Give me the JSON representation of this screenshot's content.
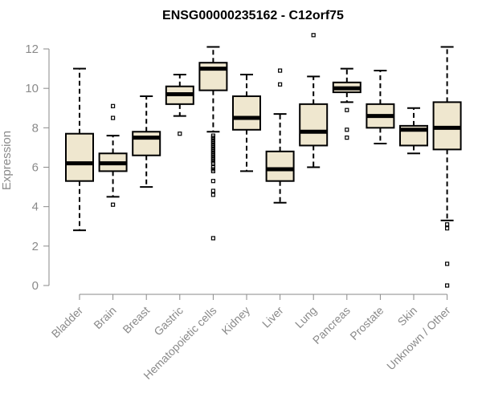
{
  "chart_data": {
    "type": "box",
    "title": "ENSG00000235162 - C12orf75",
    "xlabel": "",
    "ylabel": "Expression",
    "ylim": [
      0,
      12
    ],
    "yticks": [
      0,
      2,
      4,
      6,
      8,
      10,
      12
    ],
    "box_color": "#efe7cf",
    "categories": [
      "Bladder",
      "Brain",
      "Breast",
      "Gastric",
      "Hematopoietic cells",
      "Kidney",
      "Liver",
      "Lung",
      "Pancreas",
      "Prostate",
      "Skin",
      "Unknown / Other"
    ],
    "boxes": [
      {
        "name": "Bladder",
        "min": 2.8,
        "q1": 5.3,
        "median": 6.2,
        "q3": 7.7,
        "max": 11.0,
        "outliers": []
      },
      {
        "name": "Brain",
        "min": 4.5,
        "q1": 5.8,
        "median": 6.2,
        "q3": 6.7,
        "max": 7.6,
        "outliers": [
          4.1,
          8.5,
          9.1
        ]
      },
      {
        "name": "Breast",
        "min": 5.0,
        "q1": 6.6,
        "median": 7.5,
        "q3": 7.8,
        "max": 9.6,
        "outliers": []
      },
      {
        "name": "Gastric",
        "min": 8.6,
        "q1": 9.2,
        "median": 9.7,
        "q3": 10.1,
        "max": 10.7,
        "outliers": [
          7.7
        ]
      },
      {
        "name": "Hematopoietic cells",
        "min": 7.8,
        "q1": 9.9,
        "median": 11.0,
        "q3": 11.3,
        "max": 12.1,
        "outliers": [
          7.6,
          7.5,
          7.4,
          7.3,
          7.2,
          7.1,
          7.0,
          6.9,
          6.8,
          6.7,
          6.6,
          6.5,
          6.4,
          6.3,
          6.2,
          6.0,
          5.9,
          5.8,
          5.3,
          4.8,
          4.6,
          2.4
        ]
      },
      {
        "name": "Kidney",
        "min": 5.8,
        "q1": 7.9,
        "median": 8.5,
        "q3": 9.6,
        "max": 10.7,
        "outliers": []
      },
      {
        "name": "Liver",
        "min": 4.2,
        "q1": 5.3,
        "median": 5.9,
        "q3": 6.8,
        "max": 8.7,
        "outliers": [
          10.2,
          10.9
        ]
      },
      {
        "name": "Lung",
        "min": 6.0,
        "q1": 7.1,
        "median": 7.8,
        "q3": 9.2,
        "max": 10.6,
        "outliers": [
          12.7
        ]
      },
      {
        "name": "Pancreas",
        "min": 9.3,
        "q1": 9.8,
        "median": 10.0,
        "q3": 10.3,
        "max": 11.0,
        "outliers": [
          8.9,
          7.9,
          7.5
        ]
      },
      {
        "name": "Prostate",
        "min": 7.2,
        "q1": 8.0,
        "median": 8.6,
        "q3": 9.2,
        "max": 10.9,
        "outliers": []
      },
      {
        "name": "Skin",
        "min": 6.7,
        "q1": 7.1,
        "median": 7.9,
        "q3": 8.1,
        "max": 9.0,
        "outliers": []
      },
      {
        "name": "Unknown / Other",
        "min": 3.3,
        "q1": 6.9,
        "median": 8.0,
        "q3": 9.3,
        "max": 12.1,
        "outliers": [
          3.1,
          2.9,
          1.1,
          0.0
        ]
      }
    ]
  }
}
